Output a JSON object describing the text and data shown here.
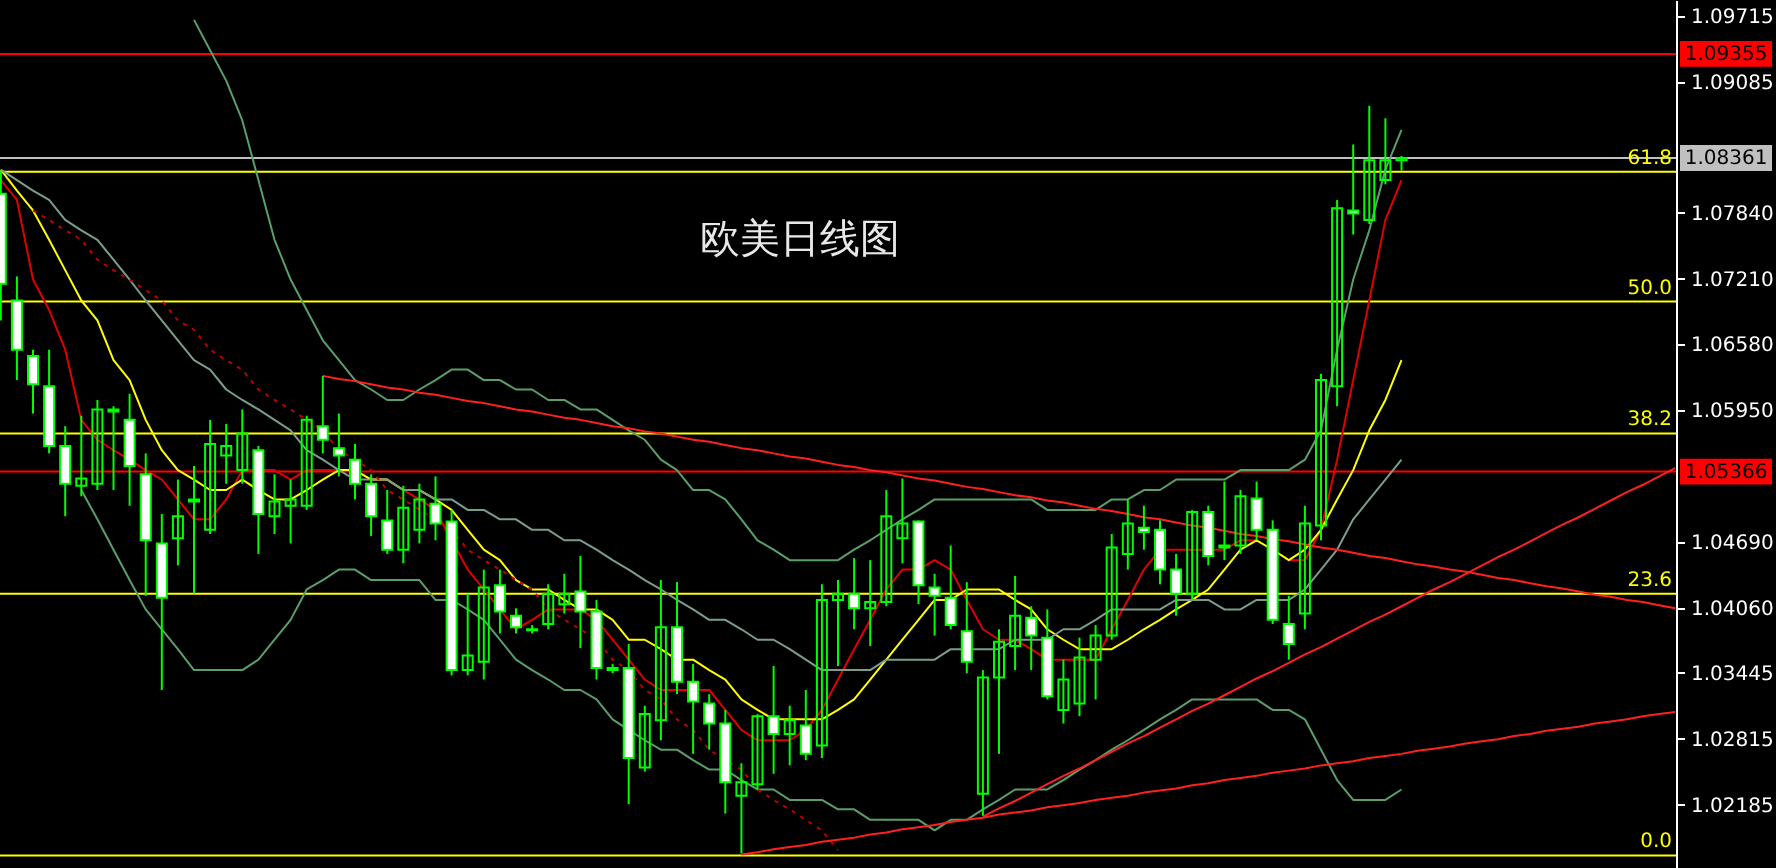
{
  "chart_data": {
    "type": "candlestick",
    "title": "欧美日线图",
    "tick_labels": "y",
    "color": "#00ff00",
    "categories": [
      null,
      null,
      null,
      null,
      null,
      null,
      null,
      null,
      null,
      null,
      null,
      null,
      null,
      null,
      null,
      null,
      null,
      null,
      null,
      null,
      null,
      null,
      null,
      null,
      null,
      null,
      null,
      null,
      null,
      null,
      null,
      null,
      null,
      null,
      null,
      null,
      null,
      null,
      null,
      null,
      null,
      null,
      null,
      null,
      null,
      null,
      null,
      null,
      null,
      null,
      null,
      null,
      null,
      null,
      null,
      null,
      null,
      null,
      null,
      null,
      null,
      null,
      null,
      null,
      null,
      null,
      null,
      null,
      null,
      null,
      null,
      null,
      null,
      null,
      null,
      null,
      null,
      null,
      null,
      null,
      null,
      null,
      null,
      null,
      null,
      null,
      null,
      null,
      null,
      null,
      null,
      null,
      null,
      null,
      null,
      null,
      null,
      null,
      null,
      null,
      null,
      null,
      null,
      null,
      null
    ],
    "ohlc": [
      [
        1.0802,
        1.0824,
        1.0681,
        1.0716
      ],
      [
        1.07,
        1.0723,
        1.0624,
        1.0653
      ],
      [
        1.0647,
        1.0653,
        1.0592,
        1.062
      ],
      [
        1.0618,
        1.0653,
        1.0554,
        1.0561
      ],
      [
        1.0561,
        1.058,
        1.0494,
        1.0525
      ],
      [
        1.0523,
        1.059,
        1.0513,
        1.053
      ],
      [
        1.0525,
        1.0605,
        1.0519,
        1.0596
      ],
      [
        1.0594,
        1.0599,
        1.0519,
        1.0596
      ],
      [
        1.0586,
        1.0611,
        1.0504,
        1.0542
      ],
      [
        1.0534,
        1.0554,
        1.0418,
        1.0471
      ],
      [
        1.0468,
        1.0496,
        1.0328,
        1.0416
      ],
      [
        1.0473,
        1.0529,
        1.0447,
        1.0494
      ],
      [
        1.051,
        1.0542,
        1.042,
        1.0508
      ],
      [
        1.0481,
        1.0586,
        1.0477,
        1.0563
      ],
      [
        1.0552,
        1.0582,
        1.0525,
        1.0561
      ],
      [
        1.0538,
        1.0596,
        1.0525,
        1.0573
      ],
      [
        1.0557,
        1.0561,
        1.0458,
        1.0496
      ],
      [
        1.0494,
        1.0534,
        1.0477,
        1.0508
      ],
      [
        1.0504,
        1.0529,
        1.0468,
        1.051
      ],
      [
        1.0504,
        1.059,
        1.05,
        1.0586
      ],
      [
        1.058,
        1.0628,
        1.0554,
        1.0567
      ],
      [
        1.0559,
        1.0592,
        1.0532,
        1.0552
      ],
      [
        1.0548,
        1.0563,
        1.051,
        1.0525
      ],
      [
        1.0525,
        1.0534,
        1.0475,
        1.0494
      ],
      [
        1.049,
        1.0519,
        1.0458,
        1.0462
      ],
      [
        1.0462,
        1.0523,
        1.0449,
        1.0502
      ],
      [
        1.0481,
        1.0525,
        1.0468,
        1.051
      ],
      [
        1.0506,
        1.0532,
        1.0471,
        1.0487
      ],
      [
        1.0489,
        1.05,
        1.0342,
        1.0347
      ],
      [
        1.0347,
        1.042,
        1.0342,
        1.0361
      ],
      [
        1.0355,
        1.0443,
        1.0338,
        1.0426
      ],
      [
        1.0428,
        1.0443,
        1.0382,
        1.0403
      ],
      [
        1.0399,
        1.0406,
        1.0382,
        1.0388
      ],
      [
        1.0386,
        1.039,
        1.0382,
        1.0385
      ],
      [
        1.0391,
        1.0429,
        1.0386,
        1.042
      ],
      [
        1.041,
        1.0439,
        1.0401,
        1.042
      ],
      [
        1.0422,
        1.0456,
        1.0368,
        1.0403
      ],
      [
        1.0403,
        1.0414,
        1.0338,
        1.0349
      ],
      [
        1.0349,
        1.0353,
        1.0344,
        1.0347
      ],
      [
        1.0349,
        1.0372,
        1.0219,
        1.0263
      ],
      [
        1.0254,
        1.0313,
        1.025,
        1.0305
      ],
      [
        1.0299,
        1.0433,
        1.028,
        1.0388
      ],
      [
        1.0388,
        1.0431,
        1.0324,
        1.0336
      ],
      [
        1.0336,
        1.0353,
        1.0267,
        1.0317
      ],
      [
        1.0315,
        1.0324,
        1.0271,
        1.0296
      ],
      [
        1.0296,
        1.0309,
        1.021,
        1.024
      ],
      [
        1.0227,
        1.0258,
        1.0172,
        1.024
      ],
      [
        1.0238,
        1.0305,
        1.0233,
        1.0303
      ],
      [
        1.0303,
        1.0351,
        1.0248,
        1.0286
      ],
      [
        1.0286,
        1.0313,
        1.0256,
        1.0299
      ],
      [
        1.0294,
        1.0328,
        1.0261,
        1.0267
      ],
      [
        1.0275,
        1.0429,
        1.0263,
        1.0414
      ],
      [
        1.0414,
        1.0433,
        1.0351,
        1.042
      ],
      [
        1.042,
        1.0454,
        1.0386,
        1.0406
      ],
      [
        1.0406,
        1.0452,
        1.037,
        1.0412
      ],
      [
        1.0412,
        1.0519,
        1.0408,
        1.0494
      ],
      [
        1.0473,
        1.053,
        1.0449,
        1.0487
      ],
      [
        1.0489,
        1.049,
        1.041,
        1.0428
      ],
      [
        1.0426,
        1.0439,
        1.038,
        1.0418
      ],
      [
        1.0416,
        1.0466,
        1.0386,
        1.039
      ],
      [
        1.0384,
        1.0431,
        1.0344,
        1.0355
      ],
      [
        1.0229,
        1.0347,
        1.0208,
        1.034
      ],
      [
        1.034,
        1.0386,
        1.0267,
        1.0374
      ],
      [
        1.037,
        1.0437,
        1.0347,
        1.0399
      ],
      [
        1.0397,
        1.0408,
        1.0347,
        1.038
      ],
      [
        1.0378,
        1.0405,
        1.0319,
        1.0322
      ],
      [
        1.0309,
        1.0357,
        1.0296,
        1.0338
      ],
      [
        1.0315,
        1.0378,
        1.0303,
        1.0359
      ],
      [
        1.0357,
        1.039,
        1.0319,
        1.038
      ],
      [
        1.038,
        1.0477,
        1.0376,
        1.0464
      ],
      [
        1.0458,
        1.051,
        1.0443,
        1.0487
      ],
      [
        1.0483,
        1.0504,
        1.0462,
        1.0479
      ],
      [
        1.0481,
        1.049,
        1.0429,
        1.0443
      ],
      [
        1.0443,
        1.0458,
        1.0399,
        1.042
      ],
      [
        1.042,
        1.05,
        1.0414,
        1.0498
      ],
      [
        1.0498,
        1.0504,
        1.0447,
        1.0456
      ],
      [
        1.0464,
        1.0527,
        1.0452,
        1.0466
      ],
      [
        1.0466,
        1.0519,
        1.0458,
        1.0513
      ],
      [
        1.0511,
        1.0527,
        1.0471,
        1.0481
      ],
      [
        1.0481,
        1.049,
        1.0391,
        1.0395
      ],
      [
        1.0391,
        1.0418,
        1.0357,
        1.0372
      ],
      [
        1.0401,
        1.0504,
        1.0386,
        1.0487
      ],
      [
        1.0485,
        1.063,
        1.0471,
        1.0624
      ],
      [
        1.0618,
        1.0796,
        1.0599,
        1.0788
      ],
      [
        1.0786,
        1.0849,
        1.0763,
        1.0783
      ],
      [
        1.0777,
        1.0886,
        1.0773,
        1.0834
      ],
      [
        1.0815,
        1.0874,
        1.0811,
        1.0834
      ],
      [
        1.0834,
        1.0838,
        1.0824,
        1.0836
      ],
      null,
      null,
      null,
      null,
      null,
      null,
      null,
      null,
      null,
      null,
      null,
      null,
      null,
      null,
      null,
      null,
      null
    ],
    "series": [
      {
        "type": "line",
        "color": "#e00000",
        "values": [
          1.0815,
          1.0796,
          1.072,
          1.0691,
          1.0653,
          1.0586,
          1.0567,
          1.0557,
          1.0548,
          1.0538,
          1.0529,
          1.051,
          1.0491,
          1.0491,
          1.051,
          1.0538,
          1.0538,
          1.0538,
          1.0529,
          1.0538,
          1.0538,
          1.0538,
          1.0538,
          1.0529,
          1.0529,
          1.0519,
          1.051,
          1.05,
          1.0471,
          1.0443,
          1.0424,
          1.0405,
          1.0386,
          1.0395,
          1.0405,
          1.0405,
          1.0405,
          1.0395,
          1.0376,
          1.0357,
          1.0338,
          1.0328,
          1.0328,
          1.0328,
          1.0328,
          1.0309,
          1.029,
          1.028,
          1.028,
          1.028,
          1.029,
          1.0309,
          1.0338,
          1.0367,
          1.0395,
          1.0424,
          1.0443,
          1.0443,
          1.0452,
          1.0443,
          1.0414,
          1.0386,
          1.0376,
          1.0376,
          1.0367,
          1.0357,
          1.0357,
          1.0357,
          1.0357,
          1.0386,
          1.0414,
          1.0443,
          1.0462,
          1.0462,
          1.0462,
          1.0462,
          1.0462,
          1.0471,
          1.0471,
          null,
          1.0452,
          1.0452,
          1.0481,
          1.0548,
          1.0624,
          1.07,
          1.0777,
          1.0815,
          null,
          null,
          null,
          null,
          null,
          null,
          null,
          null,
          null,
          null,
          null,
          null,
          null,
          null,
          null,
          null,
          null
        ]
      },
      {
        "type": "line",
        "color": "#ffff00",
        "values": [
          1.0825,
          1.0805,
          1.0786,
          1.0758,
          1.0729,
          1.07,
          1.0681,
          1.0643,
          1.0624,
          1.0586,
          1.0557,
          1.0538,
          1.0529,
          1.0519,
          1.0519,
          1.0529,
          1.0519,
          1.051,
          1.051,
          1.0519,
          1.0529,
          1.0538,
          1.0538,
          1.0529,
          1.0529,
          1.0519,
          1.0519,
          1.051,
          1.05,
          1.0481,
          1.0462,
          1.0452,
          1.0433,
          1.0424,
          1.0424,
          1.0414,
          1.0405,
          1.0405,
          1.0395,
          1.0376,
          1.0376,
          1.0367,
          1.0357,
          1.0357,
          1.0347,
          1.0338,
          1.0319,
          1.0309,
          1.03,
          1.03,
          1.03,
          1.03,
          1.0309,
          1.0319,
          1.0338,
          1.0357,
          1.0376,
          1.0395,
          1.0414,
          1.0414,
          1.0424,
          1.0424,
          1.0424,
          1.0414,
          1.0405,
          1.0386,
          1.0376,
          1.0367,
          1.0367,
          1.0367,
          1.0376,
          1.0386,
          1.0395,
          1.0405,
          1.0414,
          1.0424,
          1.0443,
          1.0462,
          1.0471,
          1.0462,
          1.0452,
          1.0462,
          1.0481,
          1.051,
          1.0538,
          1.0576,
          1.0605,
          1.0643,
          null,
          null,
          null,
          null,
          null,
          null,
          null,
          null,
          null,
          null,
          null,
          null,
          null,
          null,
          null,
          null,
          null
        ]
      },
      {
        "type": "line",
        "color": "#5a9e6a",
        "values": [
          null,
          null,
          null,
          null,
          null,
          null,
          null,
          null,
          null,
          null,
          null,
          null,
          1.0968,
          1.0939,
          1.091,
          1.0872,
          1.0815,
          1.0758,
          1.072,
          1.0691,
          1.0662,
          1.0643,
          1.0624,
          1.0615,
          1.0605,
          1.0605,
          1.0615,
          1.0624,
          1.0634,
          1.0634,
          1.0624,
          1.0624,
          1.0615,
          1.0615,
          1.0605,
          1.0605,
          1.0596,
          1.0596,
          1.0586,
          1.0576,
          1.0567,
          1.0548,
          1.0538,
          1.0519,
          1.0519,
          1.051,
          1.0491,
          1.0471,
          1.0462,
          1.0452,
          1.0452,
          1.0452,
          1.0452,
          1.0462,
          1.0471,
          1.0481,
          1.0491,
          1.05,
          1.051,
          1.051,
          1.051,
          1.051,
          1.051,
          1.051,
          1.051,
          1.05,
          1.05,
          1.05,
          1.05,
          1.051,
          1.051,
          1.0519,
          1.0519,
          1.0529,
          1.0529,
          1.0529,
          1.0529,
          1.0538,
          1.0538,
          1.0538,
          1.0538,
          1.0548,
          1.0576,
          1.0653,
          1.072,
          1.0767,
          1.0825,
          1.0863,
          null,
          null,
          null,
          null,
          null,
          null,
          null,
          null,
          null,
          null,
          null,
          null,
          null,
          null,
          null,
          null,
          null
        ]
      },
      {
        "type": "line",
        "color": "#7a9e8a",
        "values": [
          1.0825,
          1.0815,
          1.0805,
          1.0796,
          1.0777,
          1.0767,
          1.0758,
          1.0739,
          1.072,
          1.07,
          1.0681,
          1.0662,
          1.0643,
          1.0634,
          1.0615,
          1.0605,
          1.0596,
          1.0586,
          1.0576,
          1.0557,
          1.0548,
          1.0538,
          1.0529,
          1.0529,
          1.0529,
          1.0519,
          1.0519,
          1.051,
          1.051,
          1.05,
          1.05,
          1.0491,
          1.0491,
          1.0481,
          1.0481,
          1.0471,
          1.0471,
          1.0462,
          1.0452,
          1.0443,
          1.0433,
          1.0424,
          1.0414,
          1.0405,
          1.0395,
          1.0395,
          1.0386,
          1.0376,
          1.0376,
          1.0367,
          1.0357,
          1.0347,
          1.0347,
          1.0347,
          1.0347,
          1.0357,
          1.0357,
          1.0357,
          1.0357,
          1.0367,
          1.0367,
          1.0367,
          1.0367,
          1.0376,
          1.0376,
          1.0376,
          1.0386,
          1.0386,
          1.0395,
          1.0405,
          1.0405,
          1.0405,
          1.0405,
          1.0414,
          1.0414,
          1.0414,
          1.0405,
          1.0405,
          1.0414,
          1.0414,
          1.0414,
          1.0424,
          1.0443,
          1.0462,
          1.0491,
          1.051,
          1.0529,
          1.0548,
          null,
          null,
          null,
          null,
          null,
          null,
          null,
          null,
          null,
          null,
          null,
          null,
          null,
          null,
          null,
          null,
          null
        ]
      },
      {
        "type": "line",
        "color": "#5a9e6a",
        "values": [
          null,
          null,
          null,
          null,
          null,
          1.0519,
          1.0491,
          1.0462,
          1.0433,
          1.0405,
          1.0386,
          1.0367,
          1.0347,
          1.0347,
          1.0347,
          1.0347,
          1.0357,
          1.0376,
          1.0395,
          1.0424,
          1.0433,
          1.0443,
          1.0443,
          1.0433,
          1.0433,
          1.0433,
          1.0433,
          1.0414,
          1.0414,
          1.0405,
          1.0395,
          1.0376,
          1.0357,
          1.0347,
          1.0338,
          1.0328,
          1.0328,
          1.0319,
          1.03,
          1.029,
          1.028,
          1.0271,
          1.0271,
          1.0261,
          1.0252,
          1.0252,
          1.0242,
          1.0233,
          1.0233,
          1.0223,
          1.0223,
          1.0223,
          1.0214,
          1.0214,
          1.0204,
          1.0204,
          1.0204,
          1.0204,
          1.0194,
          1.0204,
          1.0204,
          1.0214,
          1.0223,
          1.0233,
          1.0233,
          1.0233,
          1.0242,
          1.0252,
          1.0261,
          1.0271,
          1.028,
          1.029,
          1.03,
          1.0309,
          1.0319,
          1.0319,
          1.0319,
          1.0319,
          1.0319,
          1.0309,
          1.0309,
          1.03,
          1.0271,
          1.0242,
          1.0223,
          1.0223,
          1.0223,
          1.0233,
          null,
          null,
          null,
          null,
          null,
          null,
          null,
          null,
          null,
          null,
          null,
          null,
          null,
          null,
          null,
          null,
          null
        ]
      },
      {
        "type": "line",
        "color": "#c00000",
        "line_style": "dotted",
        "values": [
          null,
          null,
          1.0786,
          1.0777,
          1.0767,
          1.0758,
          1.0739,
          1.0729,
          1.072,
          1.071,
          1.07,
          1.0681,
          1.0672,
          1.0653,
          1.0643,
          1.0634,
          1.0615,
          1.0605,
          1.0596,
          1.0586,
          1.0576,
          1.0557,
          1.0548,
          1.0538,
          1.0519,
          1.051,
          1.05,
          1.0491,
          1.0481,
          1.0462,
          1.0452,
          1.0443,
          1.0433,
          1.0424,
          1.0405,
          1.0395,
          1.0386,
          1.0376,
          1.0357,
          1.0347,
          1.0328,
          1.0319,
          1.03,
          1.029,
          1.0271,
          1.0261,
          1.0252,
          1.0233,
          1.0223,
          1.0214,
          1.0204,
          1.0194,
          1.0175,
          null,
          null,
          null,
          null,
          null,
          null,
          null,
          null,
          null,
          null,
          null,
          null,
          null,
          null,
          null,
          null,
          null,
          null,
          null,
          null,
          null,
          null,
          null,
          null,
          null,
          null,
          null,
          null,
          null,
          null,
          null,
          null,
          null,
          null,
          null,
          null,
          null,
          null,
          null,
          null,
          null,
          null,
          null,
          null,
          null,
          null,
          null,
          null,
          null,
          null,
          null,
          null
        ]
      },
      {
        "type": "line",
        "color": "#ff2020",
        "values": [
          null,
          null,
          null,
          null,
          null,
          null,
          null,
          null,
          null,
          null,
          null,
          null,
          null,
          null,
          null,
          null,
          null,
          null,
          null,
          null,
          1.0628,
          1.0625,
          1.0623,
          1.062,
          1.0617,
          1.0615,
          1.0612,
          1.061,
          1.0607,
          1.0604,
          1.0602,
          1.0599,
          1.0596,
          1.0594,
          1.0591,
          1.0588,
          1.0586,
          1.0583,
          1.058,
          1.0578,
          1.0575,
          1.0573,
          1.057,
          1.0567,
          1.0565,
          1.0562,
          1.0559,
          1.0557,
          1.0554,
          1.0551,
          1.0549,
          1.0546,
          1.0543,
          1.0541,
          1.0538,
          1.0536,
          1.0533,
          1.053,
          1.0528,
          1.0525,
          1.0522,
          1.052,
          1.0517,
          1.0514,
          1.0512,
          1.0509,
          1.0507,
          1.0504,
          1.0501,
          1.0499,
          1.0496,
          1.0493,
          1.0491,
          1.0488,
          1.0485,
          1.0483,
          1.048,
          1.0477,
          1.0475,
          1.0472,
          1.047,
          1.0467,
          1.0464,
          1.0462,
          1.0459,
          1.0456,
          1.0454,
          1.0451,
          1.0448,
          1.0446,
          1.0443,
          1.0441,
          1.0438,
          1.0435,
          1.0433,
          1.043,
          1.0427,
          1.0425,
          1.0422,
          1.0419,
          1.0417,
          1.0414,
          1.0412,
          1.0409,
          1.0406
        ]
      },
      {
        "type": "line",
        "color": "#ff2020",
        "values": [
          null,
          null,
          null,
          null,
          null,
          null,
          null,
          null,
          null,
          null,
          null,
          null,
          null,
          null,
          null,
          null,
          null,
          null,
          null,
          null,
          null,
          null,
          null,
          null,
          null,
          null,
          null,
          null,
          null,
          null,
          null,
          null,
          null,
          null,
          null,
          null,
          null,
          null,
          null,
          null,
          null,
          null,
          null,
          null,
          null,
          null,
          1.0171,
          1.0173,
          1.0176,
          1.0178,
          1.018,
          1.0183,
          1.0185,
          1.0187,
          1.019,
          1.0192,
          1.0195,
          1.0197,
          1.0199,
          1.0202,
          1.0204,
          1.0206,
          1.0209,
          1.0211,
          1.0213,
          1.0216,
          1.0218,
          1.022,
          1.0223,
          1.0225,
          1.0227,
          1.023,
          1.0232,
          1.0234,
          1.0237,
          1.0239,
          1.0242,
          1.0244,
          1.0246,
          1.0249,
          1.0251,
          1.0253,
          1.0256,
          1.0258,
          1.026,
          1.0263,
          1.0265,
          1.0267,
          1.027,
          1.0272,
          1.0274,
          1.0277,
          1.0279,
          1.0281,
          1.0284,
          1.0286,
          1.0289,
          1.0291,
          1.0293,
          1.0296,
          1.0298,
          1.03,
          1.0303,
          1.0305,
          1.0307
        ]
      },
      {
        "type": "line",
        "color": "#ff2020",
        "values": [
          null,
          null,
          null,
          null,
          null,
          null,
          null,
          null,
          null,
          null,
          null,
          null,
          null,
          null,
          null,
          null,
          null,
          null,
          null,
          null,
          null,
          null,
          null,
          null,
          null,
          null,
          null,
          null,
          null,
          null,
          null,
          null,
          null,
          null,
          null,
          null,
          null,
          null,
          null,
          null,
          null,
          null,
          null,
          null,
          null,
          null,
          null,
          null,
          null,
          null,
          null,
          null,
          null,
          null,
          null,
          null,
          null,
          null,
          null,
          null,
          null,
          1.0207,
          1.0215,
          1.0222,
          1.023,
          1.0238,
          1.0246,
          1.0253,
          1.0261,
          1.0269,
          1.0277,
          1.0284,
          1.0292,
          1.03,
          1.0308,
          1.0315,
          1.0323,
          1.0331,
          1.0339,
          1.0346,
          1.0354,
          1.0362,
          1.0369,
          1.0377,
          1.0385,
          1.0393,
          1.04,
          1.0408,
          1.0416,
          1.0424,
          1.0431,
          1.0439,
          1.0447,
          1.0455,
          1.0462,
          1.047,
          1.0478,
          1.0486,
          1.0493,
          1.0501,
          1.0509,
          1.0517,
          1.0524,
          1.0532,
          1.054
        ]
      }
    ],
    "ref_lines": [
      {
        "axis": "y",
        "value": 1.09355,
        "label": "1.09355",
        "color": "#ff0000"
      },
      {
        "axis": "y",
        "value": 1.08361,
        "label": "1.08361",
        "color": "#c0c0c0"
      },
      {
        "axis": "y",
        "value": 1.05366,
        "label": "1.05366",
        "color": "#ff0000"
      },
      {
        "axis": "y",
        "value": 1.0823,
        "color": "#ffff00"
      },
      {
        "axis": "y",
        "value": 1.0699,
        "color": "#ffff00"
      },
      {
        "axis": "y",
        "value": 1.0573,
        "color": "#ffff00"
      },
      {
        "axis": "y",
        "value": 1.042,
        "color": "#ffff00"
      },
      {
        "axis": "y",
        "value": 1.017,
        "color": "#ffff00"
      }
    ],
    "annotations": [
      {
        "text": "61.8",
        "y": 1.0823
      },
      {
        "text": "50.0",
        "y": 1.0699
      },
      {
        "text": "38.2",
        "y": 1.0573
      },
      {
        "text": "23.6",
        "y": 1.042
      },
      {
        "text": "0.0",
        "y": 1.017
      }
    ],
    "ylim": [
      1.0158,
      1.0987
    ],
    "yticks": [
      {
        "value": 1.09715,
        "label": "1.09715"
      },
      {
        "value": 1.09085,
        "label": "1.09085"
      },
      {
        "value": 1.0784,
        "label": "1.07840"
      },
      {
        "value": 1.0721,
        "label": "1.07210"
      },
      {
        "value": 1.0658,
        "label": "1.06580"
      },
      {
        "value": 1.0595,
        "label": "1.05950"
      },
      {
        "value": 1.0469,
        "label": "1.04690"
      },
      {
        "value": 1.0406,
        "label": "1.04060"
      },
      {
        "value": 1.03445,
        "label": "1.03445"
      },
      {
        "value": 1.02815,
        "label": "1.02815"
      },
      {
        "value": 1.02185,
        "label": "1.02185"
      }
    ]
  }
}
